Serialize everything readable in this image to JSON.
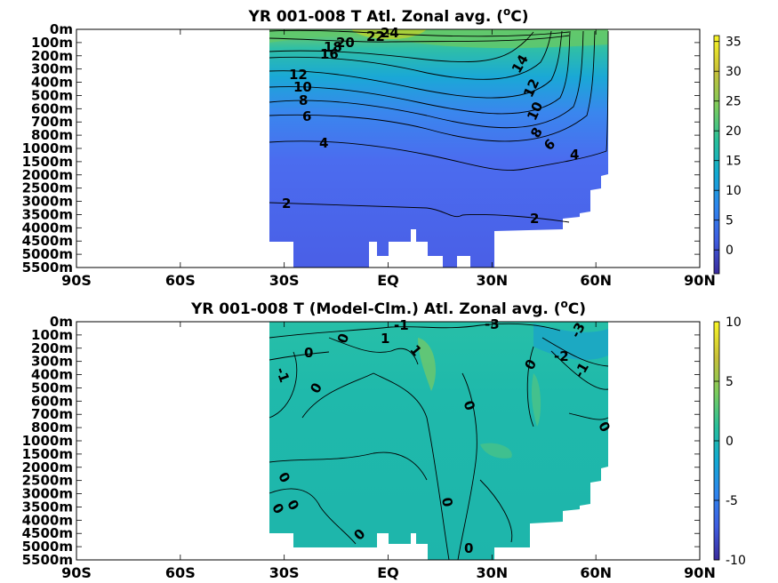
{
  "chart_data": [
    {
      "type": "heatmap",
      "title": "YR 001-008 T Atl. Zonal avg. (",
      "title_sup": "o",
      "title_tail": "C)",
      "xtick_labels": [
        "90S",
        "60S",
        "30S",
        "EQ",
        "30N",
        "60N",
        "90N"
      ],
      "ytick_labels": [
        "0m",
        "100m",
        "200m",
        "300m",
        "400m",
        "500m",
        "600m",
        "700m",
        "800m",
        "1000m",
        "1500m",
        "2000m",
        "2500m",
        "3000m",
        "3500m",
        "4000m",
        "4500m",
        "5000m",
        "5500m"
      ],
      "colorbar_ticks": [
        "35",
        "30",
        "25",
        "20",
        "15",
        "10",
        "5",
        "0"
      ],
      "colorbar_range": [
        -4,
        36
      ],
      "contour_labels": [
        "24",
        "22",
        "20",
        "18",
        "16",
        "14",
        "12",
        "12",
        "10",
        "10",
        "8",
        "8",
        "6",
        "6",
        "4",
        "4",
        "2",
        "2"
      ],
      "colormap": [
        "#3a2a9c",
        "#3f5de0",
        "#2f86ee",
        "#12aad2",
        "#28c09a",
        "#7acc5e",
        "#c8c038",
        "#f9f626"
      ]
    },
    {
      "type": "heatmap",
      "title": "YR 001-008 T (Model-Clm.) Atl. Zonal avg. (",
      "title_sup": "o",
      "title_tail": "C)",
      "xtick_labels": [
        "90S",
        "60S",
        "30S",
        "EQ",
        "30N",
        "60N",
        "90N"
      ],
      "ytick_labels": [
        "0m",
        "100m",
        "200m",
        "300m",
        "400m",
        "500m",
        "600m",
        "700m",
        "800m",
        "1000m",
        "1500m",
        "2000m",
        "2500m",
        "3000m",
        "3500m",
        "4000m",
        "4500m",
        "5000m",
        "5500m"
      ],
      "colorbar_ticks": [
        "10",
        "5",
        "0",
        "-5",
        "-10"
      ],
      "colorbar_range": [
        -10,
        10
      ],
      "contour_labels": [
        "-1",
        "-3",
        "-3",
        "0",
        "1",
        "1",
        "-2",
        "-1",
        "0",
        "-1",
        "0",
        "0",
        "0",
        "0",
        "0",
        "0",
        "0",
        "0",
        "0",
        "0"
      ],
      "colormap": [
        "#3a2a9c",
        "#3f5de0",
        "#2f86ee",
        "#12aad2",
        "#28c09a",
        "#7acc5e",
        "#c8c038",
        "#f9f626"
      ]
    }
  ]
}
